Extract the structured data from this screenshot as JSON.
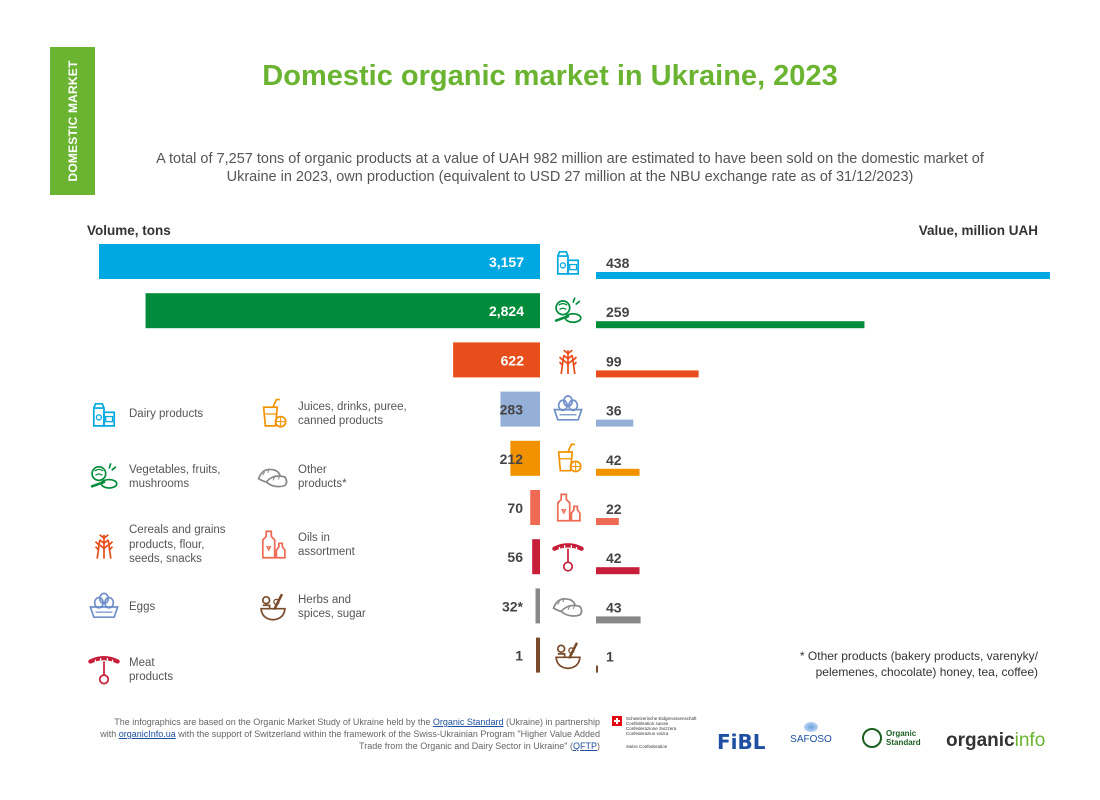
{
  "side_tab": "DOMESTIC MARKET",
  "title": "Domestic organic market in Ukraine, 2023",
  "subtitle": "A total of 7,257 tons of organic products at a value of UAH 982 million are estimated to have been sold on the domestic market of Ukraine in 2023, own production (equivalent to USD 27 million at the NBU exchange rate as of 31/12/2023)",
  "chart_data": {
    "type": "bar",
    "orientation": "horizontal-butterfly",
    "left_axis_label": "Volume, tons",
    "right_axis_label": "Value, million UAH",
    "categories": [
      "dairy",
      "vegetables",
      "cereals",
      "eggs",
      "juices",
      "oils",
      "meat",
      "other",
      "herbs"
    ],
    "series": [
      {
        "name": "Volume, tons",
        "values": [
          3157,
          2824,
          622,
          283,
          212,
          70,
          56,
          32,
          1
        ],
        "labels": [
          "3,157",
          "2,824",
          "622",
          "283",
          "212",
          "70",
          "56",
          "32*",
          "1"
        ]
      },
      {
        "name": "Value, million UAH",
        "values": [
          438,
          259,
          99,
          36,
          42,
          22,
          42,
          43,
          1
        ],
        "labels": [
          "438",
          "259",
          "99",
          "36",
          "42",
          "22",
          "42",
          "43",
          "1"
        ]
      }
    ],
    "colors": [
      "#00a8e1",
      "#008c3a",
      "#e84e1b",
      "#94b0d9",
      "#f29200",
      "#ee6a52",
      "#c71f3a",
      "#888888",
      "#7a4b2a"
    ],
    "icons": [
      "milk-carton-icon",
      "vegetables-icon",
      "wheat-icon",
      "eggs-icon",
      "juice-icon",
      "oil-bottle-icon",
      "sausage-icon",
      "dumplings-icon",
      "mortar-icon"
    ],
    "xlim": [
      0,
      3157
    ]
  },
  "legend": [
    {
      "icon": "milk-carton-icon",
      "label": "Dairy products"
    },
    {
      "icon": "juice-icon",
      "label": "Juices, drinks, puree, canned products"
    },
    {
      "icon": "vegetables-icon",
      "label": "Vegetables, fruits, mushrooms"
    },
    {
      "icon": "dumplings-icon",
      "label": "Other products*"
    },
    {
      "icon": "wheat-icon",
      "label": "Cereals and grains products, flour, seeds, snacks"
    },
    {
      "icon": "oil-bottle-icon",
      "label": "Oils in assortment"
    },
    {
      "icon": "eggs-icon",
      "label": "Eggs"
    },
    {
      "icon": "mortar-icon",
      "label": "Herbs and spices, sugar"
    },
    {
      "icon": "sausage-icon",
      "label": "Meat products"
    }
  ],
  "note": "* Other products (bakery products, varenyky/ pelemenes, chocolate) honey, tea, coffee)",
  "source": {
    "part1": "The infographics are based on the Organic Market Study of Ukraine held by the ",
    "link1": "Organic Standard",
    "part2": " (Ukraine) in partnership with ",
    "link2": "organicInfo.ua",
    "part3": " with the support of Switzerland within the framework of the Swiss-Ukrainian Program \"Higher Value Added Trade from the Organic and Dairy Sector in Ukraine\" (",
    "link3": "QFTP",
    "part4": ")"
  },
  "logos": {
    "swiss_line1": "Schweizerische Eidgenossenschaft",
    "swiss_line2": "Confédération suisse",
    "swiss_line3": "Confederazione Svizzera",
    "swiss_line4": "Confederaziun svizra",
    "swiss_line5": "Swiss Confederation",
    "fibl": "FiBL",
    "safoso": "SAFOSO",
    "organic_standard_1": "Organic",
    "organic_standard_2": "Standard",
    "organicinfo_a": "organic",
    "organicinfo_b": "info"
  }
}
